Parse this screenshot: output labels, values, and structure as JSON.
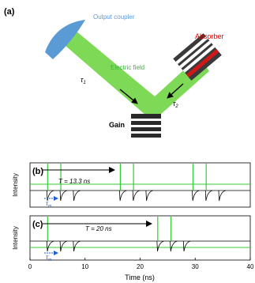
{
  "panel_a": {
    "label": "(a)",
    "output_coupler": "Output coupler",
    "absorber": "Absorber",
    "electric_field": "Electric field",
    "tau1": "τ",
    "tau1_sub": "1",
    "tau2": "τ",
    "tau2_sub": "2",
    "gain": "Gain"
  },
  "panel_b": {
    "label": "(b)",
    "period": "T = 13.3 ns",
    "tau_m": "τ",
    "tau_m_sub": "m",
    "ylabel": "Intensity"
  },
  "panel_c": {
    "label": "(c)",
    "period": "T = 20 ns",
    "tau_m": "τ",
    "tau_m_sub": "m",
    "ylabel": "Intensity"
  },
  "axis": {
    "xlabel": "Time (ns)",
    "ticks": [
      "0",
      "10",
      "20",
      "30",
      "40"
    ]
  },
  "colors": {
    "beam": "#7ed957",
    "coupler": "#5b9bd5",
    "absorber_label": "#e00000",
    "absorber_stripe": "#d01818",
    "trace_green": "#33cc33",
    "output_coupler_label": "#5b9bd5",
    "electric_field_label": "#3cb43c"
  },
  "chart_data": [
    {
      "type": "line",
      "panel": "b",
      "xlim": [
        0,
        40
      ],
      "period_ns": 13.3,
      "tau_m_ns": 2.5,
      "pulse_times_ns": [
        3.2,
        5.6,
        8.0,
        16.4,
        18.8,
        21.2,
        29.6,
        32.0,
        34.4
      ],
      "green_marker_times_ns": [
        3.2,
        5.6,
        16.4,
        18.8,
        29.6,
        32.0
      ]
    },
    {
      "type": "line",
      "panel": "c",
      "xlim": [
        0,
        40
      ],
      "period_ns": 20,
      "tau_m_ns": 2.5,
      "pulse_times_ns": [
        3.2,
        5.6,
        8.0,
        23.2,
        25.6,
        28.0
      ],
      "green_marker_times_ns": [
        3.2,
        23.2,
        25.6
      ]
    }
  ]
}
